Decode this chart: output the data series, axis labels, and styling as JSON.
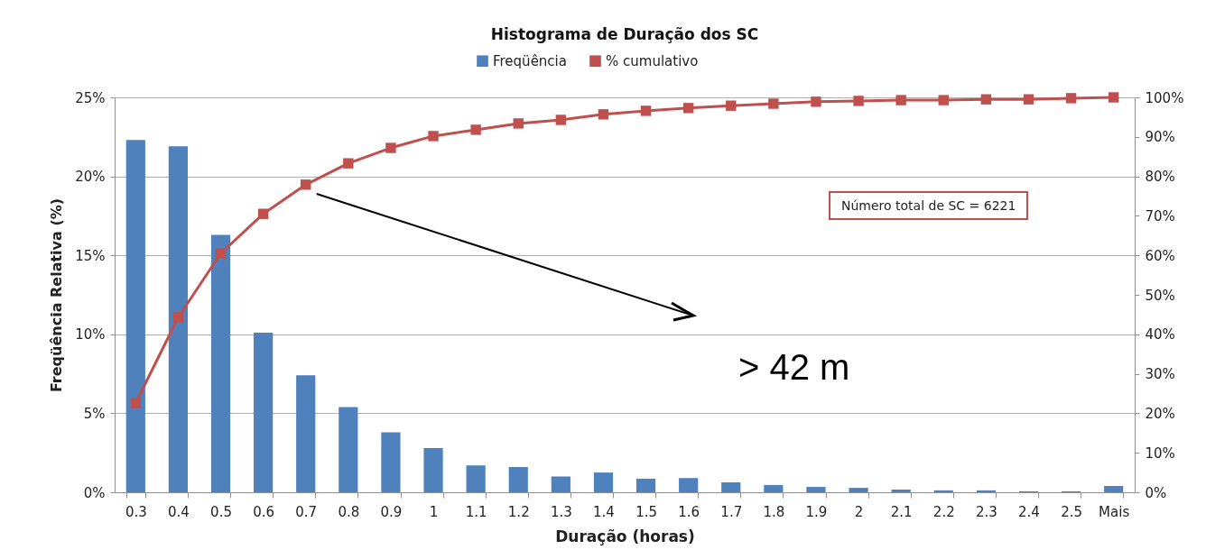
{
  "chart_data": {
    "type": "bar",
    "title": "Histograma de Duração dos SC",
    "xlabel": "Duração (horas)",
    "ylabel": "Freqüência Relativa (%)",
    "categories": [
      "0.3",
      "0.4",
      "0.5",
      "0.6",
      "0.7",
      "0.8",
      "0.9",
      "1",
      "1.1",
      "1.2",
      "1.3",
      "1.4",
      "1.5",
      "1.6",
      "1.7",
      "1.8",
      "1.9",
      "2",
      "2.1",
      "2.2",
      "2.3",
      "2.4",
      "2.5",
      "Mais"
    ],
    "series": [
      {
        "name": "Freqüência",
        "color": "#4f81bd",
        "values": [
          22.3,
          21.9,
          16.3,
          10.1,
          7.4,
          5.4,
          3.8,
          2.8,
          1.7,
          1.6,
          1.0,
          1.25,
          0.86,
          0.9,
          0.63,
          0.46,
          0.34,
          0.28,
          0.17,
          0.12,
          0.12,
          0.06,
          0.06,
          0.4
        ]
      },
      {
        "name": "% cumulativo",
        "type": "line",
        "axis": "y2",
        "color": "#c0504d",
        "values": [
          22.6,
          44.3,
          60.5,
          70.5,
          77.9,
          83.3,
          87.2,
          90.2,
          91.8,
          93.4,
          94.3,
          95.7,
          96.6,
          97.3,
          97.9,
          98.4,
          98.9,
          99.1,
          99.3,
          99.3,
          99.5,
          99.5,
          99.8,
          100
        ]
      }
    ],
    "ylim": [
      0,
      25
    ],
    "yticks": [
      {
        "value": 0,
        "label": "0%"
      },
      {
        "value": 5,
        "label": "5%"
      },
      {
        "value": 10,
        "label": "10%"
      },
      {
        "value": 15,
        "label": "15%"
      },
      {
        "value": 20,
        "label": "20%"
      },
      {
        "value": 25,
        "label": "25%"
      }
    ],
    "y2lim": [
      0,
      100
    ],
    "y2ticks": [
      {
        "value": 0,
        "label": "0%"
      },
      {
        "value": 10,
        "label": "10%"
      },
      {
        "value": 20,
        "label": "20%"
      },
      {
        "value": 30,
        "label": "30%"
      },
      {
        "value": 40,
        "label": "40%"
      },
      {
        "value": 50,
        "label": "50%"
      },
      {
        "value": 60,
        "label": "60%"
      },
      {
        "value": 70,
        "label": "70%"
      },
      {
        "value": 80,
        "label": "80%"
      },
      {
        "value": 90,
        "label": "90%"
      },
      {
        "value": 100,
        "label": "100%"
      }
    ],
    "grid": "y",
    "legend": "top",
    "marker": "square",
    "annotations": [
      "Número total de SC = 6221",
      "> 42 m"
    ]
  }
}
